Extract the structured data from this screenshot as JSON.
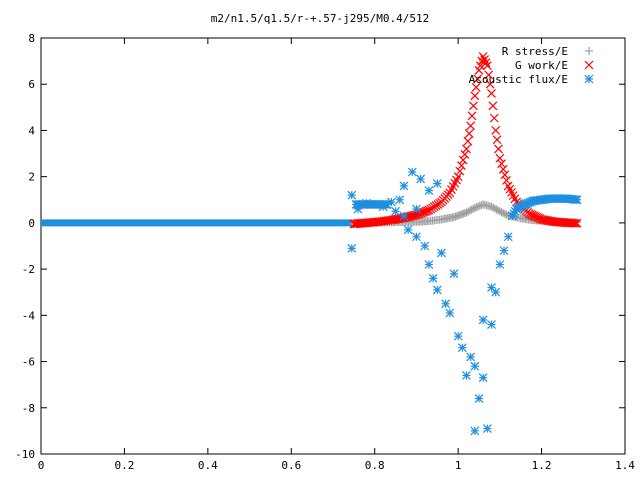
{
  "chart_data": {
    "type": "scatter",
    "title": "m2/n1.5/q1.5/r-+.57-j295/M0.4/512",
    "xlabel": "",
    "ylabel": "",
    "xlim": [
      0,
      1.4
    ],
    "ylim": [
      -10,
      8
    ],
    "xticks": [
      "0",
      "0.2",
      "0.4",
      "0.6",
      "0.8",
      "1",
      "1.2",
      "1.4"
    ],
    "yticks": [
      "8",
      "6",
      "4",
      "2",
      "0",
      "-2",
      "-4",
      "-6",
      "-8",
      "-10"
    ],
    "legend_position": "top-right",
    "grid": false,
    "series": [
      {
        "name": "R stress/E",
        "marker": "plus",
        "color": "#a0a0a0",
        "points": [
          [
            0.75,
            0.0
          ],
          [
            0.78,
            0.01
          ],
          [
            0.81,
            0.02
          ],
          [
            0.84,
            0.03
          ],
          [
            0.87,
            0.04
          ],
          [
            0.9,
            0.05
          ],
          [
            0.93,
            0.08
          ],
          [
            0.96,
            0.15
          ],
          [
            0.99,
            0.25
          ],
          [
            1.02,
            0.45
          ],
          [
            1.04,
            0.65
          ],
          [
            1.06,
            0.8
          ],
          [
            1.08,
            0.7
          ],
          [
            1.1,
            0.5
          ],
          [
            1.12,
            0.32
          ],
          [
            1.15,
            0.2
          ],
          [
            1.18,
            0.12
          ],
          [
            1.21,
            0.08
          ],
          [
            1.24,
            0.05
          ],
          [
            1.27,
            0.03
          ],
          [
            1.285,
            0.02
          ]
        ]
      },
      {
        "name": "G work/E",
        "marker": "cross",
        "color": "#ff0000",
        "points": [
          [
            0.75,
            -0.05
          ],
          [
            0.78,
            0.0
          ],
          [
            0.81,
            0.05
          ],
          [
            0.84,
            0.12
          ],
          [
            0.87,
            0.22
          ],
          [
            0.9,
            0.35
          ],
          [
            0.93,
            0.55
          ],
          [
            0.96,
            0.9
          ],
          [
            0.98,
            1.3
          ],
          [
            1.0,
            2.0
          ],
          [
            1.02,
            3.2
          ],
          [
            1.03,
            4.2
          ],
          [
            1.04,
            5.5
          ],
          [
            1.05,
            6.6
          ],
          [
            1.06,
            7.2
          ],
          [
            1.07,
            6.8
          ],
          [
            1.08,
            5.6
          ],
          [
            1.09,
            4.0
          ],
          [
            1.1,
            2.8
          ],
          [
            1.12,
            1.6
          ],
          [
            1.14,
            0.9
          ],
          [
            1.17,
            0.4
          ],
          [
            1.2,
            0.15
          ],
          [
            1.23,
            0.05
          ],
          [
            1.26,
            0.0
          ],
          [
            1.285,
            -0.02
          ]
        ]
      },
      {
        "name": "Acoustic flux/E",
        "marker": "star",
        "color": "#1f8fe0",
        "points": [
          [
            0.745,
            1.2
          ],
          [
            0.745,
            -1.1
          ],
          [
            0.76,
            0.6
          ],
          [
            0.78,
            0.85
          ],
          [
            0.8,
            0.8
          ],
          [
            0.82,
            0.7
          ],
          [
            0.84,
            0.9
          ],
          [
            0.85,
            0.5
          ],
          [
            0.86,
            1.0
          ],
          [
            0.87,
            0.3
          ],
          [
            0.87,
            1.6
          ],
          [
            0.88,
            -0.3
          ],
          [
            0.89,
            2.2
          ],
          [
            0.9,
            0.6
          ],
          [
            0.9,
            -0.6
          ],
          [
            0.91,
            1.9
          ],
          [
            0.92,
            -1.0
          ],
          [
            0.93,
            1.4
          ],
          [
            0.93,
            -1.8
          ],
          [
            0.94,
            -2.4
          ],
          [
            0.95,
            1.7
          ],
          [
            0.95,
            -2.9
          ],
          [
            0.96,
            -1.3
          ],
          [
            0.97,
            -3.5
          ],
          [
            0.98,
            -3.9
          ],
          [
            0.99,
            -2.2
          ],
          [
            1.0,
            -4.9
          ],
          [
            1.01,
            -5.4
          ],
          [
            1.02,
            -6.6
          ],
          [
            1.03,
            -5.8
          ],
          [
            1.04,
            -6.2
          ],
          [
            1.04,
            -9.0
          ],
          [
            1.05,
            -7.6
          ],
          [
            1.06,
            -6.7
          ],
          [
            1.06,
            -4.2
          ],
          [
            1.07,
            -8.9
          ],
          [
            1.08,
            -4.4
          ],
          [
            1.08,
            -2.8
          ],
          [
            1.09,
            -3.0
          ],
          [
            1.1,
            -1.8
          ],
          [
            1.11,
            -1.2
          ],
          [
            1.12,
            -0.6
          ],
          [
            1.13,
            0.3
          ],
          [
            1.14,
            0.6
          ],
          [
            1.16,
            0.8
          ],
          [
            1.18,
            0.95
          ],
          [
            1.2,
            1.0
          ],
          [
            1.22,
            1.05
          ],
          [
            1.24,
            1.05
          ],
          [
            1.26,
            1.05
          ],
          [
            1.285,
            1.0
          ]
        ]
      }
    ],
    "baseline": {
      "x_start": 0,
      "x_end": 0.745,
      "value": 0.0
    }
  }
}
